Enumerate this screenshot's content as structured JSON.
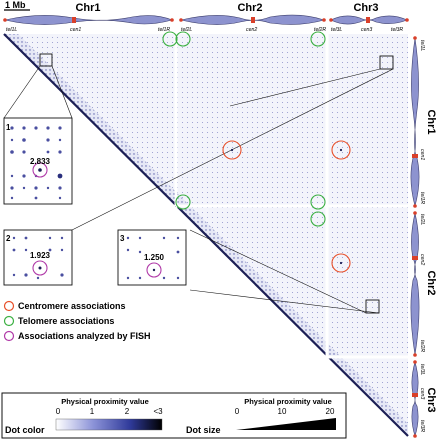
{
  "scale_bar": {
    "label": "1 Mb"
  },
  "chromosomes": [
    {
      "name": "Chr1",
      "markers": {
        "tel_left": "tel1L",
        "cen": "cen1",
        "tel_right": "tel1R"
      }
    },
    {
      "name": "Chr2",
      "markers": {
        "tel_left": "tel2L",
        "cen": "cen2",
        "tel_right": "tel2R"
      }
    },
    {
      "name": "Chr3",
      "markers": {
        "tel_left": "tel3L",
        "cen": "cen3",
        "tel_right": "tel3R"
      }
    }
  ],
  "insets": [
    {
      "index": "1",
      "value": "2.833"
    },
    {
      "index": "2",
      "value": "1.923"
    },
    {
      "index": "3",
      "value": "1.250"
    }
  ],
  "legend_items": [
    {
      "label": "Centromere associations",
      "color": "#e8502a"
    },
    {
      "label": "Telomere associations",
      "color": "#3cb043"
    },
    {
      "label": "Associations analyzed by FISH",
      "color": "#b03aa8"
    }
  ],
  "dot_color_legend": {
    "title": "Physical proximity value",
    "label": "Dot color",
    "ticks": [
      "0",
      "1",
      "2",
      "<3"
    ]
  },
  "dot_size_legend": {
    "title": "Physical proximity value",
    "label": "Dot size",
    "ticks": [
      "0",
      "10",
      "20"
    ]
  }
}
